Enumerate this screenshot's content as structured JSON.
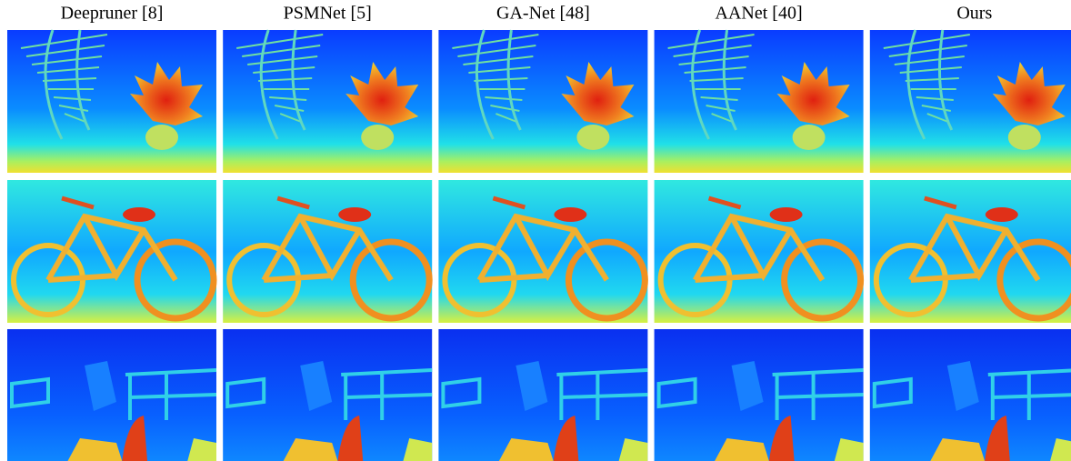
{
  "columns": [
    "Deepruner [8]",
    "PSMNet [5]",
    "GA-Net [48]",
    "AANet [40]",
    "Ours"
  ]
}
